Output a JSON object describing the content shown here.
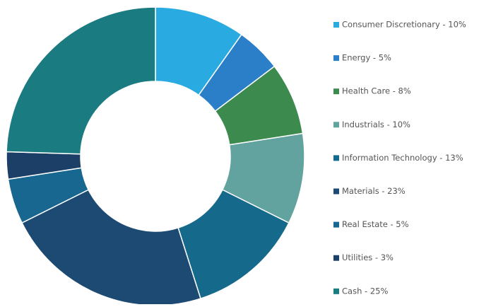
{
  "chart_data": {
    "type": "donut",
    "categories": [
      "Consumer Discretionary - 10%",
      "Energy - 5%",
      "Health Care - 8%",
      "Industrials - 10%",
      "Information Technology - 13%",
      "Materials - 23%",
      "Real Estate - 5%",
      "Utilities - 3%",
      "Cash - 25%"
    ],
    "values": [
      10,
      5,
      8,
      10,
      13,
      23,
      5,
      3,
      25
    ],
    "colors": [
      "#29abe2",
      "#2a7fc8",
      "#3d8a4f",
      "#62a39f",
      "#156a8b",
      "#1c4a72",
      "#176790",
      "#1b3f66",
      "#1a7b80"
    ],
    "legend": "right"
  }
}
